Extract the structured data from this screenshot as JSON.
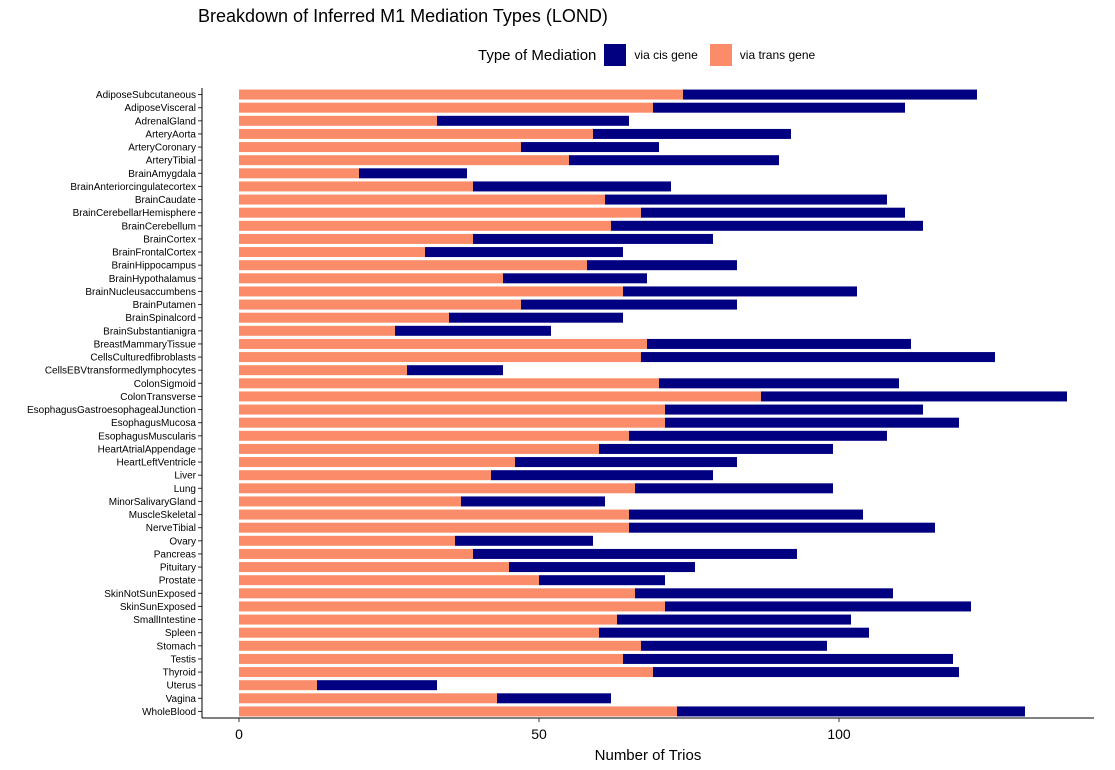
{
  "chart_data": {
    "type": "bar",
    "orientation": "horizontal",
    "stacked": true,
    "title": "Breakdown of Inferred M1 Mediation Types (LOND)",
    "xlabel": "Number of Trios",
    "ylabel": "",
    "xlim": [
      0,
      138
    ],
    "xticks": [
      0,
      50,
      100
    ],
    "grid": false,
    "legend": {
      "title": "Type of Mediation",
      "position": "top"
    },
    "colors": {
      "cis": "#000080",
      "trans": "#FA8C69"
    },
    "categories": [
      "AdiposeSubcutaneous",
      "AdiposeVisceral",
      "AdrenalGland",
      "ArteryAorta",
      "ArteryCoronary",
      "ArteryTibial",
      "BrainAmygdala",
      "BrainAnteriorcingulatecortex",
      "BrainCaudate",
      "BrainCerebellarHemisphere",
      "BrainCerebellum",
      "BrainCortex",
      "BrainFrontalCortex",
      "BrainHippocampus",
      "BrainHypothalamus",
      "BrainNucleusaccumbens",
      "BrainPutamen",
      "BrainSpinalcord",
      "BrainSubstantianigra",
      "BreastMammaryTissue",
      "CellsCulturedfibroblasts",
      "CellsEBVtransformedlymphocytes",
      "ColonSigmoid",
      "ColonTransverse",
      "EsophagusGastroesophagealJunction",
      "EsophagusMucosa",
      "EsophagusMuscularis",
      "HeartAtrialAppendage",
      "HeartLeftVentricle",
      "Liver",
      "Lung",
      "MinorSalivaryGland",
      "MuscleSkeletal",
      "NerveTibial",
      "Ovary",
      "Pancreas",
      "Pituitary",
      "Prostate",
      "SkinNotSunExposed",
      "SkinSunExposed",
      "SmallIntestine",
      "Spleen",
      "Stomach",
      "Testis",
      "Thyroid",
      "Uterus",
      "Vagina",
      "WholeBlood"
    ],
    "series": [
      {
        "name": "via trans gene",
        "values": [
          74,
          69,
          33,
          59,
          47,
          55,
          20,
          39,
          61,
          67,
          62,
          39,
          31,
          58,
          44,
          64,
          47,
          35,
          26,
          68,
          67,
          28,
          70,
          87,
          71,
          71,
          65,
          60,
          46,
          42,
          66,
          37,
          65,
          65,
          36,
          39,
          45,
          50,
          66,
          71,
          63,
          60,
          67,
          64,
          69,
          13,
          43,
          73
        ]
      },
      {
        "name": "via cis gene",
        "values": [
          49,
          42,
          32,
          33,
          23,
          35,
          18,
          33,
          47,
          44,
          52,
          40,
          33,
          25,
          24,
          39,
          36,
          29,
          26,
          44,
          59,
          16,
          40,
          51,
          43,
          49,
          43,
          39,
          37,
          37,
          33,
          24,
          39,
          51,
          23,
          54,
          31,
          21,
          43,
          51,
          39,
          45,
          31,
          55,
          51,
          20,
          19,
          58
        ]
      }
    ]
  }
}
